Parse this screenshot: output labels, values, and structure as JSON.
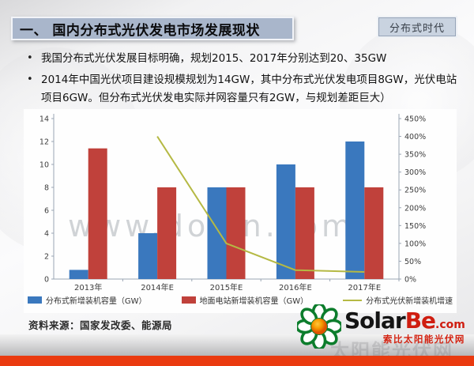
{
  "header": {
    "title": "一、 国内分布式光伏发电市场发展现状",
    "badge": "分布式时代"
  },
  "bullets": [
    "我国分布式光伏发展目标明确，规划2015、2017年分别达到20、35GW",
    "2014年中国光伏项目建设规模规划为14GW，其中分布式光伏发电项目8GW，光伏电站项目6GW。但分布式光伏发电实际并网容量只有2GW，与规划差距巨大）"
  ],
  "watermark": "www.docin.com",
  "footer_watermark": "太阳能光伏网",
  "source": "资料来源：国家发改委、能源局",
  "logo": {
    "word_black": "Solar",
    "word_red": "Be",
    "word_com": ".com",
    "tagline": "索比太阳能光伏网"
  },
  "colors": {
    "bar_blue": "#3a78be",
    "bar_red": "#c0413b",
    "line_olive": "#b5b944",
    "axis": "#9aa5b4",
    "tick_text": "#3c3c3c",
    "accent_red_bar": "#ea3a0f"
  },
  "chart_data": {
    "type": "bar",
    "subtype": "grouped bars with secondary-axis line",
    "categories": [
      "2013年",
      "2014年E",
      "2015年E",
      "2016年E",
      "2017年E"
    ],
    "series": [
      {
        "name": "分布式新增装机容量（GW）",
        "type": "bar",
        "axis": "left",
        "color": "#3a78be",
        "values": [
          0.8,
          4,
          8,
          10,
          12
        ]
      },
      {
        "name": "地面电站新增装机容量（GW）",
        "type": "bar",
        "axis": "left",
        "color": "#c0413b",
        "values": [
          11.4,
          8,
          8,
          8,
          8
        ]
      },
      {
        "name": "分布式光伏新增装机增速",
        "type": "line",
        "axis": "right",
        "color": "#b5b944",
        "values": [
          null,
          400,
          100,
          25,
          20
        ],
        "unit": "%"
      }
    ],
    "title": "",
    "xlabel": "",
    "ylabel": "",
    "left_axis": {
      "min": 0,
      "max": 14,
      "step": 2
    },
    "right_axis": {
      "min": 0,
      "max": 450,
      "step": 50,
      "suffix": "%"
    },
    "grid": false,
    "legend_position": "bottom"
  }
}
